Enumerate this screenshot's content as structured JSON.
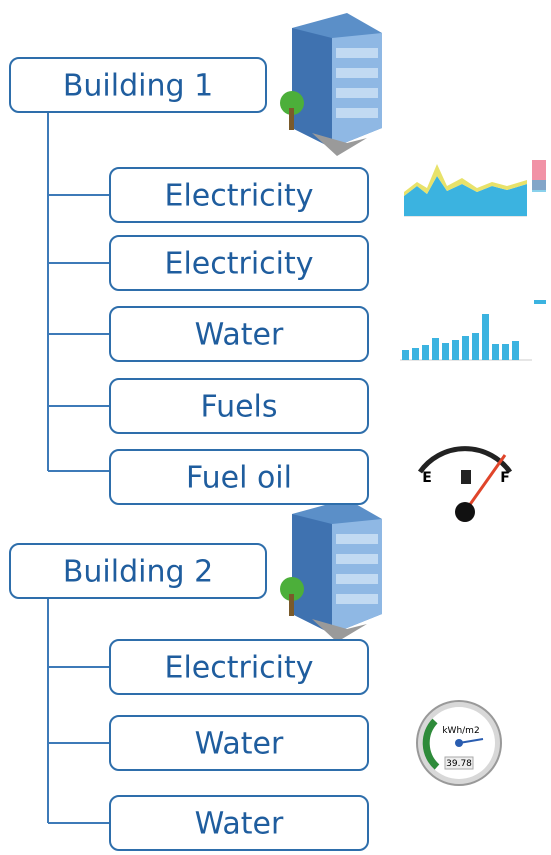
{
  "trees": [
    {
      "label": "Building 1",
      "children": [
        "Electricity",
        "Electricity",
        "Water",
        "Fuels",
        "Fuel oil"
      ]
    },
    {
      "label": "Building 2",
      "children": [
        "Electricity",
        "Water",
        "Water"
      ]
    }
  ],
  "fuel_gauge": {
    "empty": "E",
    "full": "F"
  },
  "dial_gauge": {
    "unit": "kWh/m2",
    "reading": "39.78"
  }
}
